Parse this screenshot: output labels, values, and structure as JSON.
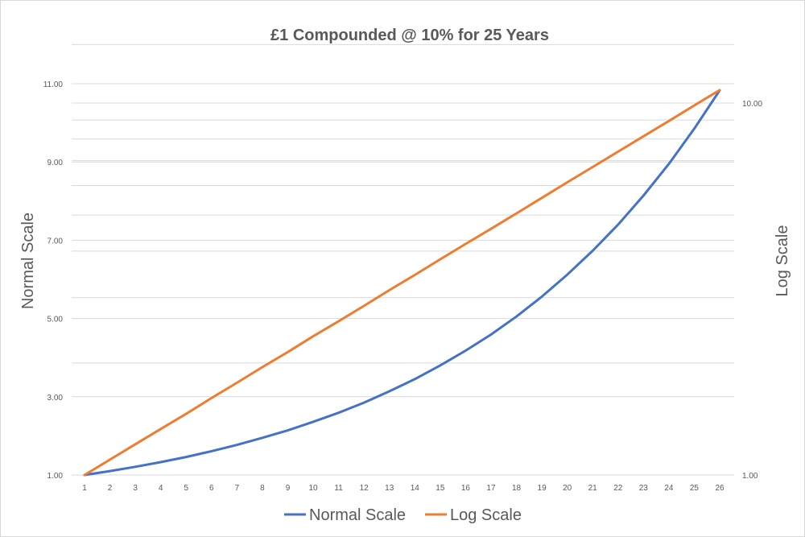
{
  "chart_data": {
    "type": "line",
    "title": "£1 Compounded @ 10% for 25 Years",
    "xlabel": "",
    "ylabel": "Normal Scale",
    "y2label": "Log Scale",
    "x": [
      1,
      2,
      3,
      4,
      5,
      6,
      7,
      8,
      9,
      10,
      11,
      12,
      13,
      14,
      15,
      16,
      17,
      18,
      19,
      20,
      21,
      22,
      23,
      24,
      25,
      26
    ],
    "ylim": [
      1,
      11
    ],
    "y_ticks": [
      "1.00",
      "3.00",
      "5.00",
      "7.00",
      "9.00",
      "11.00"
    ],
    "y2lim": [
      1,
      10.83
    ],
    "y2_scale": "log",
    "y2_ticks": [
      "1.00",
      "10.00"
    ],
    "grid": true,
    "legend_position": "bottom",
    "series": [
      {
        "name": "Normal Scale",
        "axis": "left",
        "color": "#4472C4",
        "values": [
          1.0,
          1.1,
          1.21,
          1.33,
          1.46,
          1.61,
          1.77,
          1.95,
          2.14,
          2.36,
          2.59,
          2.85,
          3.14,
          3.45,
          3.8,
          4.18,
          4.59,
          5.05,
          5.56,
          6.12,
          6.73,
          7.4,
          8.14,
          8.95,
          9.85,
          10.83
        ]
      },
      {
        "name": "Log Scale",
        "axis": "right",
        "color": "#ED7D31",
        "values": [
          1.0,
          1.1,
          1.21,
          1.33,
          1.46,
          1.61,
          1.77,
          1.95,
          2.14,
          2.36,
          2.59,
          2.85,
          3.14,
          3.45,
          3.8,
          4.18,
          4.59,
          5.05,
          5.56,
          6.12,
          6.73,
          7.4,
          8.14,
          8.95,
          9.85,
          10.83
        ]
      }
    ]
  }
}
